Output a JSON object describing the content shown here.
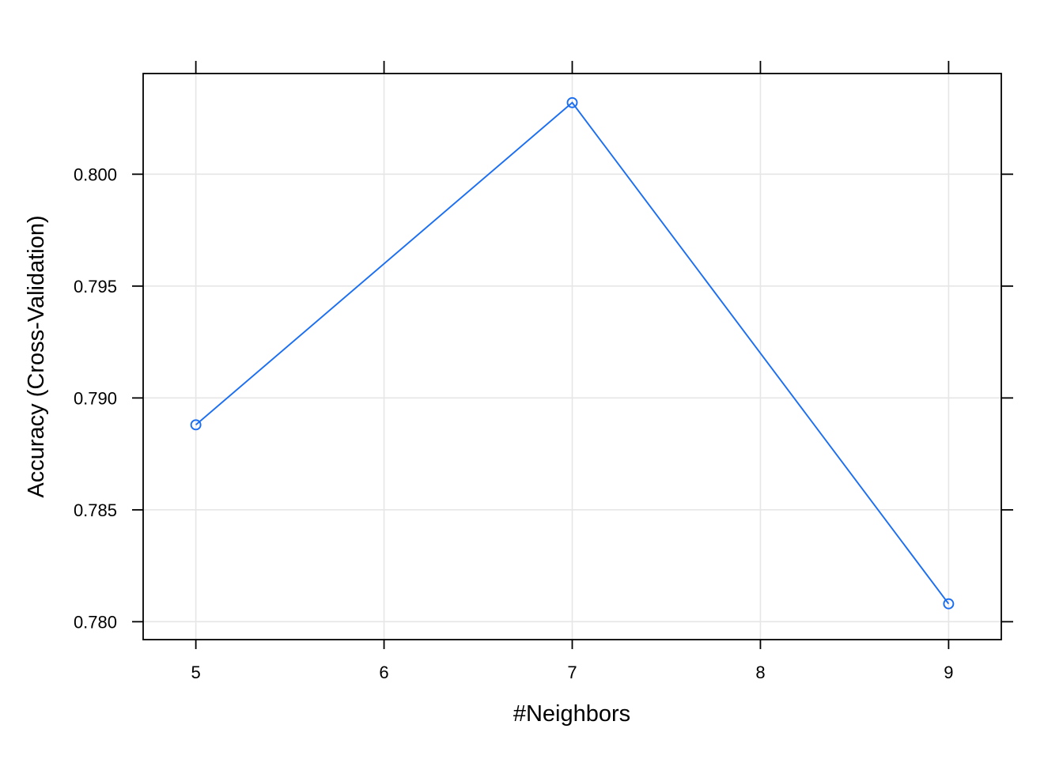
{
  "chart_data": {
    "type": "line",
    "xlabel": "#Neighbors",
    "ylabel": "Accuracy (Cross-Validation)",
    "x": [
      5,
      7,
      9
    ],
    "series": [
      {
        "values": [
          0.7888,
          0.8032,
          0.7808
        ]
      }
    ],
    "xlim": [
      4.72,
      9.28
    ],
    "ylim": [
      0.7792,
      0.8045
    ],
    "x_ticks": [
      5,
      6,
      7,
      8,
      9
    ],
    "x_tick_labels": [
      "5",
      "6",
      "7",
      "8",
      "9"
    ],
    "y_ticks": [
      0.78,
      0.785,
      0.79,
      0.795,
      0.8
    ],
    "y_tick_labels": [
      "0.780",
      "0.785",
      "0.790",
      "0.795",
      "0.800"
    ],
    "grid": true,
    "marker": "open-circle",
    "line_color": "#1a6ef2",
    "grid_color": "#e6e6e6"
  }
}
